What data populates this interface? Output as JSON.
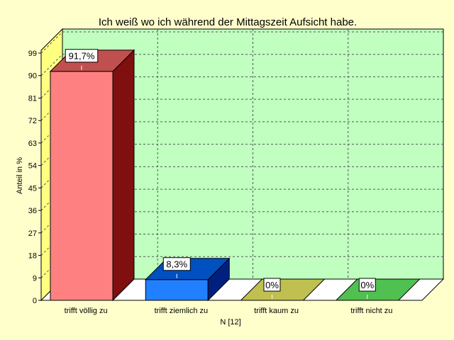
{
  "chart_data": {
    "type": "bar",
    "title": "Ich weiß wo ich während der Mittagszeit Aufsicht habe.",
    "xlabel": "N [12]",
    "ylabel": "Anteil in %",
    "ylim": [
      0,
      99
    ],
    "yticks": [
      0,
      9,
      18,
      27,
      36,
      45,
      54,
      63,
      72,
      81,
      90,
      99
    ],
    "grid": true,
    "categories": [
      "trifft völlig zu",
      "trifft ziemlich zu",
      "trifft kaum zu",
      "trifft nicht zu"
    ],
    "values": [
      91.7,
      8.3,
      0,
      0
    ],
    "data_labels": [
      "91,7%",
      "8,3%",
      "0%",
      "0%"
    ],
    "colors": {
      "background": "#ffffcc",
      "plot_wall": "#c0ffc0",
      "side_wall": "#ffff80",
      "floor": "#ffffff",
      "bars": [
        {
          "front": "#ff8080",
          "top": "#c05050",
          "side": "#801010"
        },
        {
          "front": "#2080ff",
          "top": "#0050c0",
          "side": "#002080"
        },
        {
          "front": "#c0c050",
          "top": "#c0c050",
          "side": "#909030"
        },
        {
          "front": "#50c050",
          "top": "#50c050",
          "side": "#308030"
        }
      ]
    }
  }
}
